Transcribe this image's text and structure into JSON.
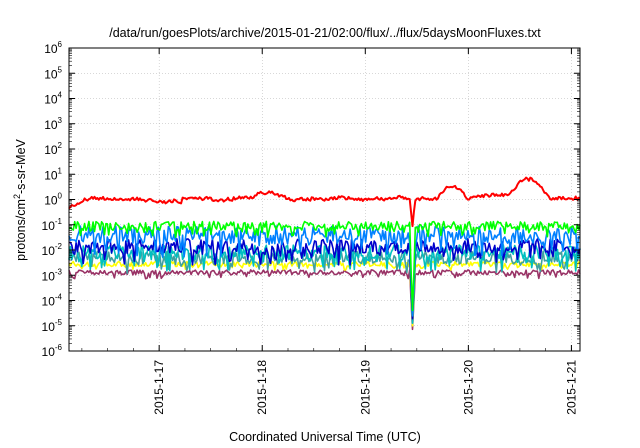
{
  "chart_data": {
    "type": "line",
    "title": "/data/run/goesPlots/archive/2015-01-21/02:00/flux/../flux/5daysMoonFluxes.txt",
    "xlabel": "Coordinated Universal Time (UTC)",
    "ylabel": {
      "base": "protons/cm",
      "sup": "2",
      "rest": "-s-sr-MeV"
    },
    "x_range_days": [
      2015.0116,
      2015.0558
    ],
    "x_range": [
      "2015-01-16 03:00",
      "2015-01-21 02:00"
    ],
    "x_ticks": [
      "2015-1-17",
      "2015-1-18",
      "2015-1-19",
      "2015-1-20",
      "2015-1-21"
    ],
    "y_scale": "log",
    "ylim": [
      1e-06,
      1000000.0
    ],
    "y_ticks": [
      {
        "base": "10",
        "exp": "-6"
      },
      {
        "base": "10",
        "exp": "-5"
      },
      {
        "base": "10",
        "exp": "-4"
      },
      {
        "base": "10",
        "exp": "-3"
      },
      {
        "base": "10",
        "exp": "-2"
      },
      {
        "base": "10",
        "exp": "-1"
      },
      {
        "base": "10",
        "exp": "0"
      },
      {
        "base": "10",
        "exp": "1"
      },
      {
        "base": "10",
        "exp": "2"
      },
      {
        "base": "10",
        "exp": "3"
      },
      {
        "base": "10",
        "exp": "4"
      },
      {
        "base": "10",
        "exp": "5"
      },
      {
        "base": "10",
        "exp": "6"
      }
    ],
    "grid": true,
    "series": [
      {
        "color": "#ff0000",
        "baseline": 1.0,
        "noise": 0.12,
        "dip_min": 0.08
      },
      {
        "color": "#00ff00",
        "baseline": 0.09,
        "noise": 0.18,
        "dip_min": 3e-05
      },
      {
        "color": "#0080ff",
        "baseline": 0.04,
        "noise": 0.35,
        "dip_min": 2e-05
      },
      {
        "color": "#0000cc",
        "baseline": 0.014,
        "noise": 0.3,
        "dip_min": 1.5e-05
      },
      {
        "color": "#00c0c0",
        "baseline": 0.008,
        "noise": 0.3,
        "dip_min": 1e-05
      },
      {
        "color": "#40a0a0",
        "baseline": 0.005,
        "noise": 0.25,
        "dip_min": 1e-05
      },
      {
        "color": "#ffff00",
        "baseline": 0.0028,
        "noise": 0.1,
        "dip_min": 8e-06
      },
      {
        "color": "#993366",
        "baseline": 0.0013,
        "noise": 0.1,
        "dip_min": 6e-06
      }
    ]
  }
}
